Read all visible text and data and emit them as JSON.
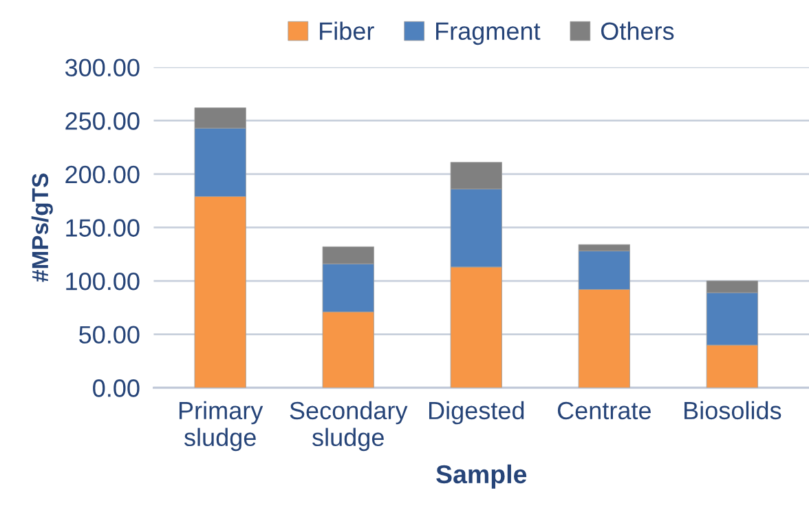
{
  "chart_data": {
    "type": "bar",
    "stacked": true,
    "xlabel": "Sample",
    "ylabel": "#MPs/gTS",
    "categories": [
      "Primary\nsludge",
      "Secondary\nsludge",
      "Digested",
      "Centrate",
      "Biosolids"
    ],
    "series": [
      {
        "name": "Fiber",
        "color": "#f79646",
        "values": [
          179,
          71,
          113,
          92,
          40
        ]
      },
      {
        "name": "Fragment",
        "color": "#4f81bd",
        "values": [
          64,
          45,
          73,
          36,
          49
        ]
      },
      {
        "name": "Others",
        "color": "#808080",
        "values": [
          19,
          16,
          25,
          6,
          11
        ]
      }
    ],
    "ylim": [
      0,
      300
    ],
    "yticks": [
      {
        "value": 0,
        "label": "0.00"
      },
      {
        "value": 50,
        "label": "50.00"
      },
      {
        "value": 100,
        "label": "100.00"
      },
      {
        "value": 150,
        "label": "150.00"
      },
      {
        "value": 200,
        "label": "200.00"
      },
      {
        "value": 250,
        "label": "250.00"
      },
      {
        "value": 300,
        "label": "300.00"
      }
    ],
    "grid": "y",
    "legend": "top"
  }
}
